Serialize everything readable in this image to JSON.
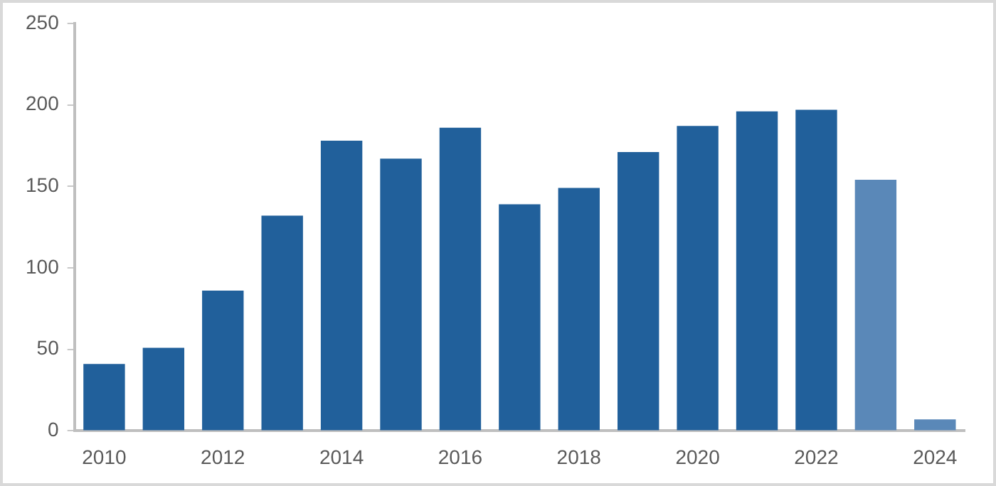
{
  "chart_data": {
    "type": "bar",
    "categories": [
      "2010",
      null,
      "2012",
      null,
      "2014",
      null,
      "2016",
      null,
      "2018",
      null,
      "2020",
      null,
      "2022",
      null,
      "2024"
    ],
    "values": [
      41,
      51,
      86,
      132,
      178,
      167,
      186,
      139,
      149,
      171,
      187,
      196,
      197,
      154,
      7
    ],
    "colors": [
      "#21609b",
      "#21609b",
      "#21609b",
      "#21609b",
      "#21609b",
      "#21609b",
      "#21609b",
      "#21609b",
      "#21609b",
      "#21609b",
      "#21609b",
      "#21609b",
      "#21609b",
      "#5a88b8",
      "#5a88b8"
    ],
    "ylim": [
      0,
      250
    ],
    "yticks": [
      0,
      50,
      100,
      150,
      200,
      250
    ],
    "grid": false,
    "legend": false
  }
}
